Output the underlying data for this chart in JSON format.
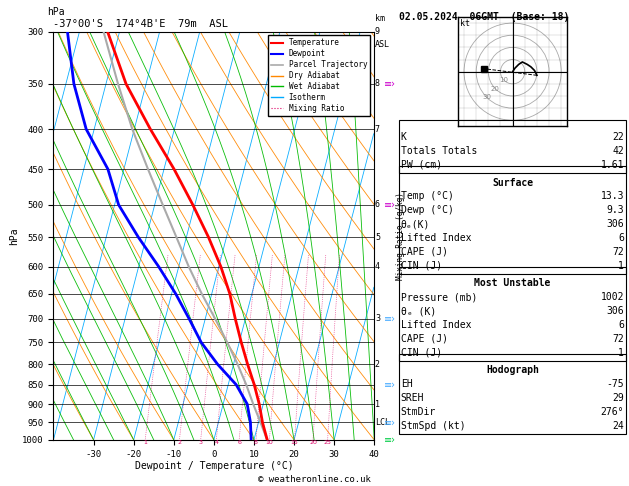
{
  "title_left": "-37°00'S  174°4B'E  79m  ASL",
  "title_right": "02.05.2024  06GMT  (Base: 18)",
  "xlabel": "Dewpoint / Temperature (°C)",
  "ylabel_left": "hPa",
  "ylabel_mixing": "Mixing Ratio (g/kg)",
  "pressure_levels": [
    300,
    350,
    400,
    450,
    500,
    550,
    600,
    650,
    700,
    750,
    800,
    850,
    900,
    950,
    1000
  ],
  "temp_range": [
    -40,
    40
  ],
  "temp_ticks": [
    -30,
    -20,
    -10,
    0,
    10,
    20,
    30,
    40
  ],
  "temp_line": {
    "pressure": [
      1000,
      950,
      900,
      850,
      800,
      750,
      700,
      650,
      600,
      550,
      500,
      450,
      400,
      350,
      300
    ],
    "temp": [
      13.3,
      11.0,
      9.0,
      6.5,
      3.5,
      0.5,
      -2.5,
      -5.5,
      -9.5,
      -14.5,
      -20.5,
      -27.5,
      -36.0,
      -45.0,
      -53.0
    ]
  },
  "dewp_line": {
    "pressure": [
      1000,
      950,
      900,
      850,
      800,
      750,
      700,
      650,
      600,
      550,
      500,
      450,
      400,
      350,
      300
    ],
    "temp": [
      9.3,
      8.0,
      6.0,
      2.0,
      -4.0,
      -9.5,
      -14.0,
      -19.0,
      -25.0,
      -32.0,
      -39.0,
      -44.0,
      -52.0,
      -58.0,
      -63.0
    ]
  },
  "parcel_line": {
    "pressure": [
      1000,
      950,
      900,
      850,
      800,
      750,
      700,
      650,
      600,
      550,
      500,
      450,
      400,
      350,
      300
    ],
    "temp": [
      13.3,
      10.5,
      7.5,
      4.5,
      1.0,
      -3.0,
      -7.5,
      -12.5,
      -17.5,
      -22.5,
      -28.0,
      -34.0,
      -40.5,
      -47.0,
      -54.0
    ]
  },
  "temp_color": "#ff0000",
  "dewp_color": "#0000ff",
  "parcel_color": "#aaaaaa",
  "dry_adiabat_color": "#ff8800",
  "wet_adiabat_color": "#00bb00",
  "isotherm_color": "#00aaff",
  "mixing_ratio_color": "#dd0066",
  "background_color": "#ffffff",
  "km_ticks": {
    "300": "9",
    "350": "8",
    "400": "7",
    "500": "6",
    "550": "5",
    "600": "4",
    "700": "3",
    "800": "2",
    "900": "1"
  },
  "stats": {
    "K": 22,
    "Totals_Totals": 42,
    "PW_cm": "1.61",
    "Surface": {
      "Temp_C": "13.3",
      "Dewp_C": "9.3",
      "theta_e_K": 306,
      "Lifted_Index": 6,
      "CAPE_J": 72,
      "CIN_J": 1
    },
    "Most_Unstable": {
      "Pressure_mb": 1002,
      "theta_e_K": 306,
      "Lifted_Index": 6,
      "CAPE_J": 72,
      "CIN_J": 1
    },
    "Hodograph": {
      "EH": -75,
      "SREH": 29,
      "StmDir": "276°",
      "StmSpd_kt": 24
    }
  }
}
